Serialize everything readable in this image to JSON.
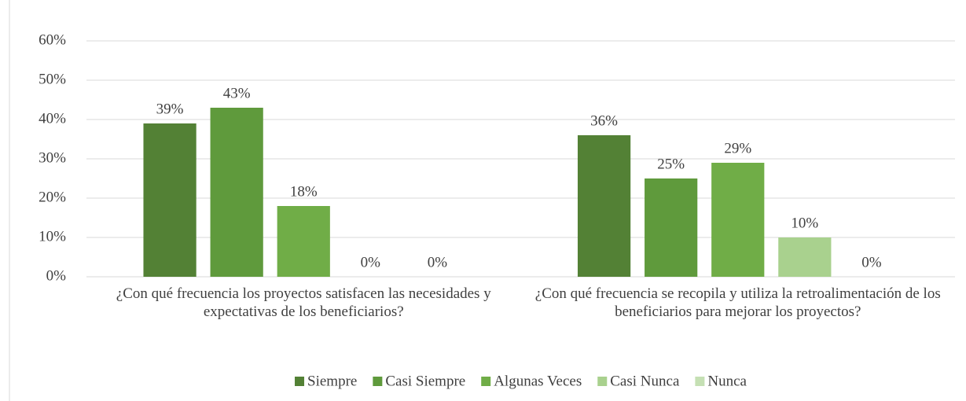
{
  "chart_data": {
    "type": "bar",
    "categories": [
      "¿Con qué frecuencia los proyectos satisfacen las necesidades y expectativas de los beneficiarios?",
      "¿Con qué frecuencia se recopila y utiliza la retroalimentación de los beneficiarios para mejorar los proyectos?"
    ],
    "series": [
      {
        "name": "Siempre",
        "color": "#538135",
        "values": [
          39,
          36
        ],
        "value_labels": [
          "39%",
          "36%"
        ]
      },
      {
        "name": "Casi Siempre",
        "color": "#5f9a3c",
        "values": [
          43,
          25
        ],
        "value_labels": [
          "43%",
          "25%"
        ]
      },
      {
        "name": "Algunas Veces",
        "color": "#70ad47",
        "values": [
          18,
          29
        ],
        "value_labels": [
          "18%",
          "29%"
        ]
      },
      {
        "name": "Casi Nunca",
        "color": "#a9d18e",
        "values": [
          0,
          10
        ],
        "value_labels": [
          "0%",
          "10%"
        ]
      },
      {
        "name": "Nunca",
        "color": "#c5e0b4",
        "values": [
          0,
          0
        ],
        "value_labels": [
          "0%",
          "0%"
        ]
      }
    ],
    "ylim": [
      0,
      60
    ],
    "yticks": [
      {
        "value": 0,
        "label": "0%"
      },
      {
        "value": 10,
        "label": "10%"
      },
      {
        "value": 20,
        "label": "20%"
      },
      {
        "value": 30,
        "label": "30%"
      },
      {
        "value": 40,
        "label": "40%"
      },
      {
        "value": 50,
        "label": "50%"
      },
      {
        "value": 60,
        "label": "60%"
      }
    ],
    "grid": true,
    "legend": "bottom"
  }
}
